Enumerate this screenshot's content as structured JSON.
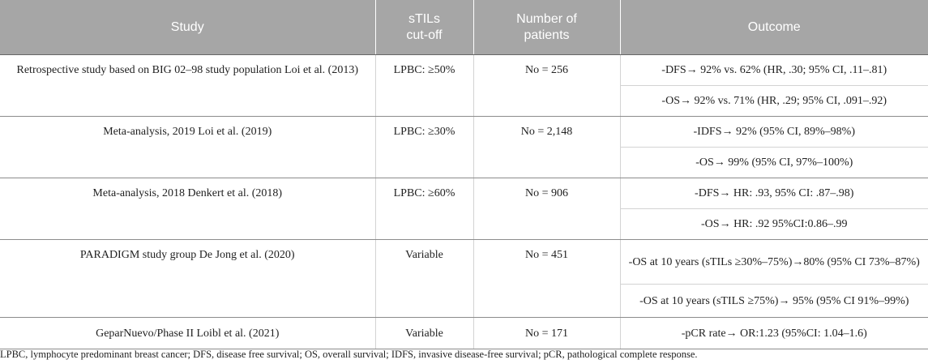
{
  "table": {
    "headers": [
      "Study",
      "sTILs\ncut-off",
      "Number of\npatients",
      "Outcome"
    ],
    "header_bg": "#a6a6a6",
    "groups": [
      {
        "study": "Retrospective study based on BIG 02–98 study population Loi et al. (2013)",
        "cutoff": "LPBC: ≥50%",
        "patients": "No = 256",
        "outcomes": [
          "-DFS→ 92% vs. 62% (HR, .30; 95% CI, .11–.81)",
          "-OS→ 92% vs. 71% (HR, .29; 95% CI, .091–.92)"
        ]
      },
      {
        "study": "Meta-analysis, 2019 Loi et al. (2019)",
        "cutoff": "LPBC: ≥30%",
        "patients": "No = 2,148",
        "outcomes": [
          "-IDFS→ 92% (95% CI, 89%–98%)",
          "-OS→ 99% (95% CI, 97%–100%)"
        ]
      },
      {
        "study": "Meta-analysis, 2018 Denkert et al. (2018)",
        "cutoff": "LPBC: ≥60%",
        "patients": "No = 906",
        "outcomes": [
          "-DFS→ HR: .93, 95% CI: .87–.98)",
          "-OS→ HR: .92 95%CI:0.86–.99"
        ]
      },
      {
        "study": "PARADIGM study group De Jong et al. (2020)",
        "cutoff": "Variable",
        "patients": "No = 451",
        "outcomes": [
          "-OS at 10 years (sTILs ≥30%–75%)→80% (95% CI 73%–87%)",
          "-OS at 10 years (sTILS ≥75%)→ 95% (95% CI 91%–99%)"
        ]
      },
      {
        "study": "GeparNuevo/Phase II Loibl et al. (2021)",
        "cutoff": "Variable",
        "patients": "No = 171",
        "outcomes": [
          "-pCR rate→ OR:1.23 (95%CI: 1.04–1.6)"
        ]
      }
    ]
  },
  "footnote": "LPBC, lymphocyte predominant breast cancer; DFS, disease free survival; OS, overall survival; IDFS, invasive disease-free survival; pCR, pathological complete response."
}
